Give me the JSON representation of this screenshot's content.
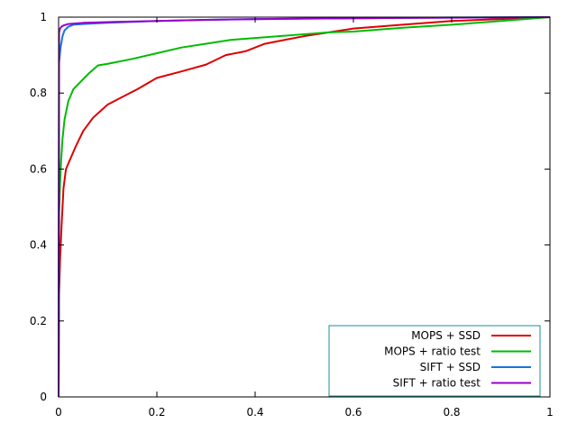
{
  "chart_data": {
    "type": "line",
    "title": "",
    "xlabel": "",
    "ylabel": "",
    "xlim": [
      0,
      1
    ],
    "ylim": [
      0,
      1
    ],
    "x_ticks": [
      "0",
      "0.2",
      "0.4",
      "0.6",
      "0.8",
      "1"
    ],
    "y_ticks": [
      "0",
      "0.2",
      "0.4",
      "0.6",
      "0.8",
      "1"
    ],
    "x_tick_values": [
      0,
      0.2,
      0.4,
      0.6,
      0.8,
      1
    ],
    "y_tick_values": [
      0,
      0.2,
      0.4,
      0.6,
      0.8,
      1
    ],
    "grid": false,
    "legend_position": "bottom-right",
    "series": [
      {
        "name": "MOPS + SSD",
        "color": "#dd0000",
        "points": [
          [
            0,
            0
          ],
          [
            0.001,
            0.27
          ],
          [
            0.003,
            0.36
          ],
          [
            0.006,
            0.45
          ],
          [
            0.01,
            0.55
          ],
          [
            0.015,
            0.6
          ],
          [
            0.025,
            0.63
          ],
          [
            0.035,
            0.66
          ],
          [
            0.05,
            0.7
          ],
          [
            0.07,
            0.735
          ],
          [
            0.1,
            0.77
          ],
          [
            0.13,
            0.79
          ],
          [
            0.16,
            0.81
          ],
          [
            0.2,
            0.84
          ],
          [
            0.25,
            0.857
          ],
          [
            0.3,
            0.875
          ],
          [
            0.34,
            0.9
          ],
          [
            0.38,
            0.91
          ],
          [
            0.42,
            0.93
          ],
          [
            0.46,
            0.94
          ],
          [
            0.5,
            0.95
          ],
          [
            0.55,
            0.96
          ],
          [
            0.6,
            0.97
          ],
          [
            0.65,
            0.975
          ],
          [
            0.7,
            0.98
          ],
          [
            0.8,
            0.99
          ],
          [
            0.9,
            0.995
          ],
          [
            1,
            1
          ]
        ]
      },
      {
        "name": "MOPS + ratio test",
        "color": "#00bb00",
        "points": [
          [
            0,
            0
          ],
          [
            0.001,
            0.48
          ],
          [
            0.003,
            0.56
          ],
          [
            0.005,
            0.62
          ],
          [
            0.008,
            0.68
          ],
          [
            0.012,
            0.73
          ],
          [
            0.02,
            0.78
          ],
          [
            0.03,
            0.81
          ],
          [
            0.045,
            0.83
          ],
          [
            0.06,
            0.85
          ],
          [
            0.08,
            0.873
          ],
          [
            0.1,
            0.877
          ],
          [
            0.15,
            0.89
          ],
          [
            0.2,
            0.905
          ],
          [
            0.25,
            0.92
          ],
          [
            0.3,
            0.93
          ],
          [
            0.35,
            0.94
          ],
          [
            0.4,
            0.945
          ],
          [
            0.5,
            0.955
          ],
          [
            0.55,
            0.96
          ],
          [
            0.6,
            0.962
          ],
          [
            0.7,
            0.972
          ],
          [
            0.8,
            0.98
          ],
          [
            0.9,
            0.99
          ],
          [
            1,
            1
          ]
        ]
      },
      {
        "name": "SIFT + SSD",
        "color": "#1177dd",
        "points": [
          [
            0,
            0
          ],
          [
            0.001,
            0.88
          ],
          [
            0.004,
            0.92
          ],
          [
            0.008,
            0.95
          ],
          [
            0.012,
            0.965
          ],
          [
            0.02,
            0.975
          ],
          [
            0.03,
            0.98
          ],
          [
            0.05,
            0.982
          ],
          [
            0.1,
            0.985
          ],
          [
            0.2,
            0.99
          ],
          [
            0.3,
            0.993
          ],
          [
            0.4,
            0.995
          ],
          [
            0.5,
            0.996
          ],
          [
            0.6,
            0.997
          ],
          [
            0.8,
            0.999
          ],
          [
            1,
            1
          ]
        ]
      },
      {
        "name": "SIFT + ratio test",
        "color": "#9900cc",
        "points": [
          [
            0,
            0
          ],
          [
            0.001,
            0.96
          ],
          [
            0.003,
            0.97
          ],
          [
            0.006,
            0.975
          ],
          [
            0.01,
            0.978
          ],
          [
            0.02,
            0.982
          ],
          [
            0.05,
            0.985
          ],
          [
            0.1,
            0.987
          ],
          [
            0.2,
            0.99
          ],
          [
            0.3,
            0.993
          ],
          [
            0.5,
            0.996
          ],
          [
            0.7,
            0.998
          ],
          [
            0.9,
            0.999
          ],
          [
            1,
            1
          ]
        ]
      }
    ]
  }
}
